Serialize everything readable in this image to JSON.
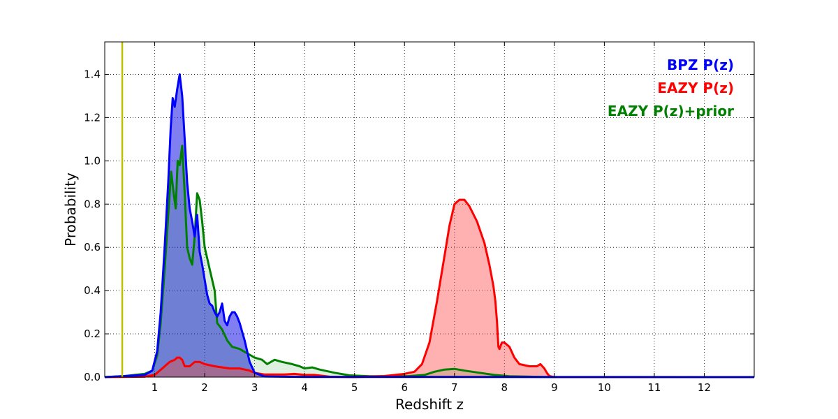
{
  "chart_data": {
    "type": "area",
    "xlabel": "Redshift z",
    "ylabel": "Probability",
    "xlim": [
      0,
      13
    ],
    "ylim": [
      0,
      1.55
    ],
    "x_ticks": [
      1,
      2,
      3,
      4,
      5,
      6,
      7,
      8,
      9,
      10,
      11,
      12
    ],
    "y_ticks": [
      0.0,
      0.2,
      0.4,
      0.6,
      0.8,
      1.0,
      1.2,
      1.4
    ],
    "y_tick_labels": [
      "0.0",
      "0.2",
      "0.4",
      "0.6",
      "0.8",
      "1.0",
      "1.2",
      "1.4"
    ],
    "grid": true,
    "legend_position": "top-right",
    "vertical_line": {
      "x": 0.35,
      "color": "#bfbf00"
    },
    "series": [
      {
        "name": "BPZ P(z)",
        "color": "#0000ff",
        "fill": "rgba(0,0,230,0.5)",
        "points": [
          [
            0,
            0
          ],
          [
            0.4,
            0.005
          ],
          [
            0.8,
            0.01
          ],
          [
            0.95,
            0.03
          ],
          [
            1.05,
            0.12
          ],
          [
            1.12,
            0.3
          ],
          [
            1.2,
            0.6
          ],
          [
            1.27,
            0.9
          ],
          [
            1.32,
            1.15
          ],
          [
            1.36,
            1.29
          ],
          [
            1.4,
            1.25
          ],
          [
            1.45,
            1.33
          ],
          [
            1.5,
            1.4
          ],
          [
            1.55,
            1.3
          ],
          [
            1.6,
            1.1
          ],
          [
            1.65,
            0.9
          ],
          [
            1.7,
            0.78
          ],
          [
            1.75,
            0.72
          ],
          [
            1.8,
            0.65
          ],
          [
            1.85,
            0.75
          ],
          [
            1.9,
            0.58
          ],
          [
            1.95,
            0.52
          ],
          [
            2.0,
            0.45
          ],
          [
            2.05,
            0.38
          ],
          [
            2.1,
            0.34
          ],
          [
            2.15,
            0.33
          ],
          [
            2.2,
            0.3
          ],
          [
            2.25,
            0.28
          ],
          [
            2.3,
            0.3
          ],
          [
            2.35,
            0.34
          ],
          [
            2.4,
            0.26
          ],
          [
            2.45,
            0.24
          ],
          [
            2.5,
            0.28
          ],
          [
            2.55,
            0.3
          ],
          [
            2.6,
            0.3
          ],
          [
            2.65,
            0.28
          ],
          [
            2.7,
            0.25
          ],
          [
            2.8,
            0.17
          ],
          [
            2.9,
            0.07
          ],
          [
            3.0,
            0.02
          ],
          [
            3.2,
            0.003
          ],
          [
            4,
            0.001
          ],
          [
            13,
            0
          ]
        ]
      },
      {
        "name": "EAZY P(z)",
        "color": "#ff0000",
        "fill": "rgba(255,80,80,0.45)",
        "points": [
          [
            0,
            0
          ],
          [
            0.8,
            0.002
          ],
          [
            1.0,
            0.01
          ],
          [
            1.15,
            0.04
          ],
          [
            1.3,
            0.07
          ],
          [
            1.4,
            0.08
          ],
          [
            1.45,
            0.09
          ],
          [
            1.5,
            0.09
          ],
          [
            1.55,
            0.08
          ],
          [
            1.6,
            0.05
          ],
          [
            1.7,
            0.05
          ],
          [
            1.8,
            0.07
          ],
          [
            1.9,
            0.07
          ],
          [
            2.0,
            0.06
          ],
          [
            2.2,
            0.05
          ],
          [
            2.5,
            0.04
          ],
          [
            2.7,
            0.04
          ],
          [
            2.9,
            0.03
          ],
          [
            3.0,
            0.02
          ],
          [
            3.2,
            0.012
          ],
          [
            3.6,
            0.012
          ],
          [
            3.8,
            0.015
          ],
          [
            4.0,
            0.01
          ],
          [
            4.2,
            0.01
          ],
          [
            4.5,
            0.002
          ],
          [
            5,
            0
          ],
          [
            5.6,
            0.005
          ],
          [
            6.0,
            0.015
          ],
          [
            6.2,
            0.025
          ],
          [
            6.35,
            0.06
          ],
          [
            6.5,
            0.16
          ],
          [
            6.65,
            0.35
          ],
          [
            6.8,
            0.56
          ],
          [
            6.9,
            0.7
          ],
          [
            7.0,
            0.8
          ],
          [
            7.1,
            0.82
          ],
          [
            7.2,
            0.82
          ],
          [
            7.3,
            0.79
          ],
          [
            7.45,
            0.72
          ],
          [
            7.6,
            0.62
          ],
          [
            7.7,
            0.52
          ],
          [
            7.78,
            0.42
          ],
          [
            7.82,
            0.35
          ],
          [
            7.85,
            0.26
          ],
          [
            7.88,
            0.14
          ],
          [
            7.9,
            0.13
          ],
          [
            7.95,
            0.16
          ],
          [
            8.0,
            0.16
          ],
          [
            8.1,
            0.14
          ],
          [
            8.2,
            0.09
          ],
          [
            8.3,
            0.06
          ],
          [
            8.5,
            0.05
          ],
          [
            8.65,
            0.05
          ],
          [
            8.72,
            0.06
          ],
          [
            8.8,
            0.04
          ],
          [
            8.85,
            0.02
          ],
          [
            8.9,
            0.005
          ],
          [
            9.0,
            0
          ],
          [
            13,
            0
          ]
        ]
      },
      {
        "name": "EAZY P(z)+prior",
        "color": "#008000",
        "fill": "rgba(0,128,0,0.12)",
        "points": [
          [
            0,
            0
          ],
          [
            0.4,
            0.005
          ],
          [
            0.6,
            0.01
          ],
          [
            0.8,
            0.015
          ],
          [
            0.95,
            0.03
          ],
          [
            1.05,
            0.1
          ],
          [
            1.12,
            0.25
          ],
          [
            1.2,
            0.5
          ],
          [
            1.27,
            0.75
          ],
          [
            1.33,
            0.95
          ],
          [
            1.38,
            0.85
          ],
          [
            1.42,
            0.78
          ],
          [
            1.46,
            1.0
          ],
          [
            1.5,
            0.98
          ],
          [
            1.55,
            1.07
          ],
          [
            1.6,
            0.85
          ],
          [
            1.65,
            0.6
          ],
          [
            1.7,
            0.55
          ],
          [
            1.75,
            0.52
          ],
          [
            1.8,
            0.65
          ],
          [
            1.85,
            0.85
          ],
          [
            1.9,
            0.82
          ],
          [
            1.95,
            0.72
          ],
          [
            2.0,
            0.6
          ],
          [
            2.05,
            0.55
          ],
          [
            2.1,
            0.5
          ],
          [
            2.15,
            0.45
          ],
          [
            2.2,
            0.4
          ],
          [
            2.25,
            0.25
          ],
          [
            2.35,
            0.22
          ],
          [
            2.45,
            0.17
          ],
          [
            2.55,
            0.14
          ],
          [
            2.7,
            0.13
          ],
          [
            2.85,
            0.11
          ],
          [
            3.0,
            0.09
          ],
          [
            3.15,
            0.08
          ],
          [
            3.25,
            0.06
          ],
          [
            3.4,
            0.08
          ],
          [
            3.55,
            0.07
          ],
          [
            3.75,
            0.06
          ],
          [
            3.9,
            0.05
          ],
          [
            4.0,
            0.04
          ],
          [
            4.15,
            0.045
          ],
          [
            4.3,
            0.035
          ],
          [
            4.6,
            0.02
          ],
          [
            4.9,
            0.008
          ],
          [
            5.3,
            0.004
          ],
          [
            5.8,
            0.004
          ],
          [
            6.1,
            0.005
          ],
          [
            6.4,
            0.01
          ],
          [
            6.6,
            0.025
          ],
          [
            6.8,
            0.035
          ],
          [
            7.0,
            0.038
          ],
          [
            7.2,
            0.03
          ],
          [
            7.5,
            0.02
          ],
          [
            7.8,
            0.01
          ],
          [
            8.1,
            0.004
          ],
          [
            8.5,
            0.002
          ],
          [
            9,
            0
          ],
          [
            13,
            0
          ]
        ]
      }
    ]
  }
}
